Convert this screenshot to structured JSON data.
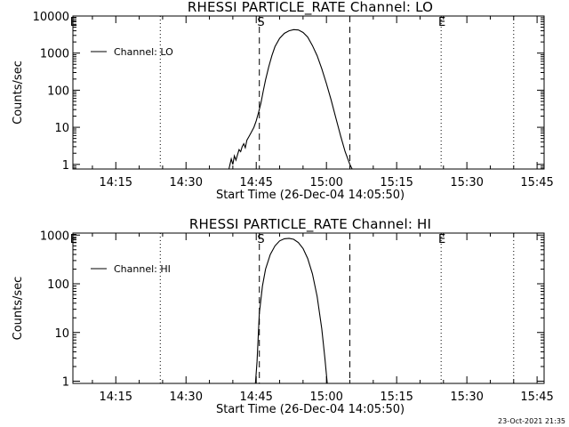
{
  "chart_data": [
    {
      "type": "line",
      "title": "RHESSI PARTICLE_RATE Channel: LO",
      "xlabel": "Start Time (26-Dec-04 14:05:50)",
      "ylabel": "Counts/sec",
      "yscale": "log",
      "xlim": [
        "14:05:50",
        "15:46:30"
      ],
      "ylim": [
        0.75,
        10000
      ],
      "x_ticks": [
        "14:15",
        "14:30",
        "14:45",
        "15:00",
        "15:15",
        "15:30",
        "15:45"
      ],
      "y_ticks": [
        {
          "value": 1,
          "label": "1"
        },
        {
          "value": 10,
          "label": "10"
        },
        {
          "value": 100,
          "label": "100"
        },
        {
          "value": 1000,
          "label": "1000"
        },
        {
          "value": 10000,
          "label": "10000"
        }
      ],
      "series": [
        {
          "name": "Channel: LO",
          "points": [
            [
              "14:39:10",
              0.75
            ],
            [
              "14:39:40",
              1.4
            ],
            [
              "14:40:00",
              1.0
            ],
            [
              "14:40:20",
              1.7
            ],
            [
              "14:40:40",
              1.3
            ],
            [
              "14:41:00",
              1.8
            ],
            [
              "14:41:20",
              2.5
            ],
            [
              "14:41:40",
              2.2
            ],
            [
              "14:42:00",
              3.0
            ],
            [
              "14:42:20",
              3.6
            ],
            [
              "14:42:40",
              2.8
            ],
            [
              "14:43:00",
              4.5
            ],
            [
              "14:43:30",
              5.8
            ],
            [
              "14:44:00",
              7.5
            ],
            [
              "14:44:30",
              10
            ],
            [
              "14:45:00",
              15
            ],
            [
              "14:45:30",
              25
            ],
            [
              "14:46:00",
              45
            ],
            [
              "14:46:30",
              95
            ],
            [
              "14:47:00",
              190
            ],
            [
              "14:47:40",
              420
            ],
            [
              "14:48:20",
              850
            ],
            [
              "14:49:00",
              1500
            ],
            [
              "14:50:00",
              2500
            ],
            [
              "14:51:00",
              3400
            ],
            [
              "14:52:00",
              4000
            ],
            [
              "14:53:00",
              4300
            ],
            [
              "14:54:00",
              4200
            ],
            [
              "14:55:00",
              3600
            ],
            [
              "14:56:00",
              2700
            ],
            [
              "14:57:00",
              1600
            ],
            [
              "14:58:00",
              850
            ],
            [
              "14:59:00",
              380
            ],
            [
              "15:00:00",
              150
            ],
            [
              "15:01:00",
              55
            ],
            [
              "15:02:00",
              18
            ],
            [
              "15:03:00",
              6
            ],
            [
              "15:04:00",
              2.2
            ],
            [
              "15:05:00",
              1.0
            ],
            [
              "15:05:30",
              0.75
            ]
          ]
        }
      ],
      "markers": {
        "dotted": [
          "14:24:30",
          "15:24:30",
          "15:40:00"
        ],
        "dashed": [
          "14:45:40",
          "15:05:00"
        ],
        "letters": [
          {
            "label": "E",
            "at": "14:06:00"
          },
          {
            "label": "S",
            "at": "14:46:00"
          },
          {
            "label": "E",
            "at": "15:24:40"
          }
        ]
      },
      "legend": "top-left"
    },
    {
      "type": "line",
      "title": "RHESSI PARTICLE_RATE Channel: HI",
      "xlabel": "Start Time (26-Dec-04 14:05:50)",
      "ylabel": "Counts/sec",
      "yscale": "log",
      "xlim": [
        "14:05:50",
        "15:46:30"
      ],
      "ylim": [
        0.9,
        1100
      ],
      "x_ticks": [
        "14:15",
        "14:30",
        "14:45",
        "15:00",
        "15:15",
        "15:30",
        "15:45"
      ],
      "y_ticks": [
        {
          "value": 1,
          "label": "1"
        },
        {
          "value": 10,
          "label": "10"
        },
        {
          "value": 100,
          "label": "100"
        },
        {
          "value": 1000,
          "label": "1000"
        }
      ],
      "series": [
        {
          "name": "Channel: HI",
          "points": [
            [
              "14:44:50",
              0.9
            ],
            [
              "14:45:10",
              2.5
            ],
            [
              "14:45:40",
              25
            ],
            [
              "14:46:20",
              90
            ],
            [
              "14:47:00",
              200
            ],
            [
              "14:48:00",
              400
            ],
            [
              "14:49:00",
              600
            ],
            [
              "14:50:00",
              760
            ],
            [
              "14:51:00",
              840
            ],
            [
              "14:52:00",
              860
            ],
            [
              "14:53:00",
              820
            ],
            [
              "14:54:00",
              700
            ],
            [
              "14:55:00",
              530
            ],
            [
              "14:56:00",
              330
            ],
            [
              "14:57:00",
              160
            ],
            [
              "14:58:00",
              55
            ],
            [
              "14:59:00",
              12
            ],
            [
              "14:59:40",
              3
            ],
            [
              "15:00:10",
              0.9
            ]
          ]
        }
      ],
      "markers": {
        "dotted": [
          "14:24:30",
          "15:24:30",
          "15:40:00"
        ],
        "dashed": [
          "14:45:40",
          "15:05:00"
        ],
        "letters": [
          {
            "label": "E",
            "at": "14:06:00"
          },
          {
            "label": "S",
            "at": "14:46:00"
          },
          {
            "label": "E",
            "at": "15:24:40"
          }
        ]
      },
      "legend": "top-left"
    }
  ],
  "footer": {
    "timestamp": "23-Oct-2021 21:35"
  }
}
